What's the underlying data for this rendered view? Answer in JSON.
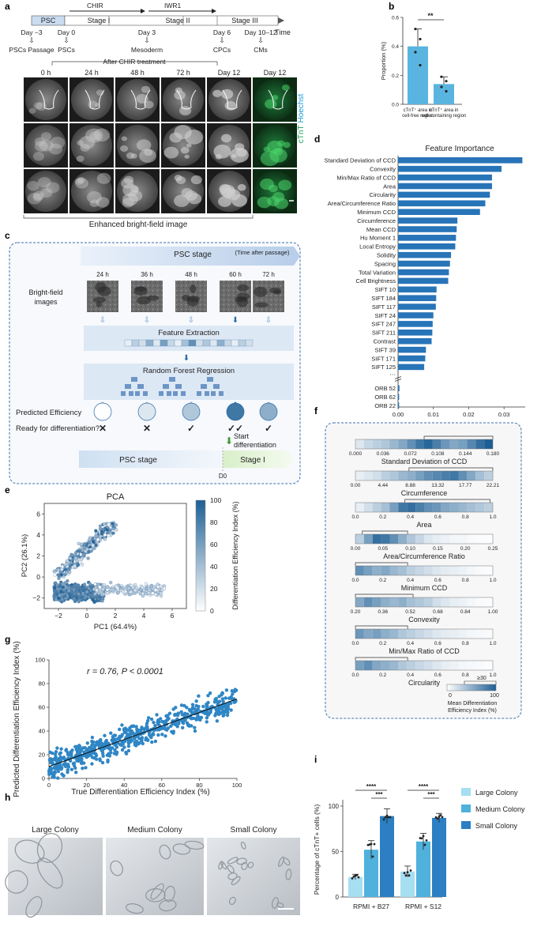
{
  "panels": {
    "a": "a",
    "b": "b",
    "c": "c",
    "d": "d",
    "e": "e",
    "f": "f",
    "g": "g",
    "h": "h",
    "i": "i"
  },
  "timeline": {
    "stages": [
      "PSC",
      "Stage I",
      "Stage II",
      "Stage III"
    ],
    "axis_label": "Time",
    "drugs": [
      "CHIR",
      "IWR1"
    ],
    "days": [
      {
        "day": "Day −3",
        "event": "PSCs Passage"
      },
      {
        "day": "Day 0",
        "event": "PSCs"
      },
      {
        "day": "Day 3",
        "event": "Mesoderm"
      },
      {
        "day": "Day 6",
        "event": "CPCs"
      },
      {
        "day": "Day 10–12",
        "event": "CMs"
      }
    ]
  },
  "images": {
    "after_chir": "After CHIR treatment",
    "time_labels": [
      "0 h",
      "24 h",
      "48 h",
      "72 h",
      "Day 12",
      "Day 12"
    ],
    "stain_ctnt": "cTnT",
    "stain_hoechst": "Hoechst",
    "bottom_label": "Enhanced bright-field image"
  },
  "bar_b": {
    "ylabel": "Proportion (%)",
    "significance": "**",
    "yticks": [
      "0.0",
      "0.2",
      "0.4",
      "0.6"
    ],
    "cat1": {
      "line1": "cTnT⁺ area in",
      "line2": "cell-free region"
    },
    "cat2": {
      "line1": "cTnT⁺ area in",
      "line2": "cell-containing region"
    }
  },
  "workflow": {
    "psc_stage_header": "PSC stage",
    "time_after": "(Time after passage)",
    "times": [
      "24 h",
      "36 h",
      "48 h",
      "60 h",
      "72 h"
    ],
    "bf_label_1": "Bright-field",
    "bf_label_2": "images",
    "feature_extraction": "Feature Extraction",
    "rf": "Random Forest Regression",
    "predicted": "Predicted Efficiency",
    "ready": "Ready for differentiation?",
    "marks": [
      "✕",
      "✕",
      "✓",
      "✓✓",
      "✓"
    ],
    "start_1": "Start",
    "start_2": "differentiation",
    "psc_stage": "PSC stage",
    "stage1": "Stage I",
    "d0": "D0"
  },
  "pca": {
    "title": "PCA",
    "xlabel": "PC1 (64.4%)",
    "ylabel": "PC2 (26.1%)",
    "xticks": [
      "−2",
      "0",
      "2",
      "4",
      "6"
    ],
    "yticks": [
      "−2",
      "0",
      "2",
      "4",
      "6"
    ],
    "cbar_label": "Differentiation Efficiency Index (%)",
    "cbar_ticks": [
      "100",
      "80",
      "60",
      "40",
      "20",
      "0"
    ]
  },
  "scatter_g": {
    "annotation": "r = 0.76, P < 0.0001",
    "xlabel": "True Differentiation Efficiency Index (%)",
    "ylabel": "Predicted Differentiation Efficiency Index (%)",
    "xticks": [
      "0",
      "20",
      "40",
      "60",
      "80",
      "100"
    ],
    "yticks": [
      "0",
      "20",
      "40",
      "60",
      "80",
      "100"
    ]
  },
  "colony_h": {
    "labels": [
      "Large Colony",
      "Medium Colony",
      "Small Colony"
    ]
  },
  "panel_f": {
    "rows": [
      {
        "name": "Standard Deviation of CCD",
        "ticks": [
          "0.000",
          "0.036",
          "0.072",
          "0.108",
          "0.144",
          "0.180"
        ]
      },
      {
        "name": "Circumference",
        "ticks": [
          "0.00",
          "4.44",
          "8.88",
          "13.32",
          "17.77",
          "22.21"
        ]
      },
      {
        "name": "Area",
        "ticks": [
          "0.0",
          "0.2",
          "0.4",
          "0.6",
          "0.8",
          "1.0"
        ]
      },
      {
        "name": "Area/Circumference Ratio",
        "ticks": [
          "0.00",
          "0.05",
          "0.10",
          "0.15",
          "0.20",
          "0.25"
        ]
      },
      {
        "name": "Minimum CCD",
        "ticks": [
          "0.0",
          "0.2",
          "0.4",
          "0.6",
          "0.8",
          "1.0"
        ]
      },
      {
        "name": "Convexity",
        "ticks": [
          "0.20",
          "0.36",
          "0.52",
          "0.68",
          "0.84",
          "1.00"
        ]
      },
      {
        "name": "Min/Max Ratio of CCD",
        "ticks": [
          "0.0",
          "0.2",
          "0.4",
          "0.6",
          "0.8",
          "1.0"
        ]
      },
      {
        "name": "Circularity",
        "ticks": [
          "0.0",
          "0.2",
          "0.4",
          "0.6",
          "0.8",
          "1.0"
        ]
      }
    ],
    "legend_max": "≥30",
    "legend_ticks": [
      "0",
      "100"
    ],
    "legend_title_1": "Mean Differentiation",
    "legend_title_2": "Efficiency Index (%)"
  },
  "chart_data": [
    {
      "id": "b",
      "type": "bar",
      "title": "",
      "categories": [
        "cTnT+ area in cell-free region",
        "cTnT+ area in cell-containing region"
      ],
      "values": [
        0.4,
        0.14
      ],
      "errors": [
        0.12,
        0.05
      ],
      "points": [
        [
          0.52,
          0.45,
          0.36,
          0.27
        ],
        [
          0.19,
          0.16,
          0.12,
          0.09
        ]
      ],
      "ylabel": "Proportion (%)",
      "ylim": [
        0,
        0.6
      ]
    },
    {
      "id": "d",
      "type": "bar",
      "orientation": "horizontal",
      "title": "Feature Importance",
      "categories": [
        "Standard Deviation of CCD",
        "Convexity",
        "Min/Max Ratio of CCD",
        "Area",
        "Circularity",
        "Area/Circumference Ratio",
        "Minimum CCD",
        "Circumference",
        "Mean CCD",
        "Hu Moment 1",
        "Local Entropy",
        "Solidity",
        "Spacing",
        "Total Variation",
        "Cell Brightness",
        "SIFT 10",
        "SIFT 184",
        "SIFT 117",
        "SIFT 24",
        "SIFT 247",
        "SIFT 211",
        "Contrast",
        "SIFT 39",
        "SIFT 171",
        "SIFT 125",
        "ORB 52",
        "ORB 62",
        "ORB 22"
      ],
      "values": [
        0.0352,
        0.0293,
        0.0266,
        0.0266,
        0.026,
        0.0247,
        0.0232,
        0.0168,
        0.0166,
        0.0164,
        0.0162,
        0.015,
        0.0147,
        0.0144,
        0.0142,
        0.0109,
        0.0108,
        0.0107,
        0.01,
        0.0098,
        0.0097,
        0.0095,
        0.0079,
        0.0077,
        0.0074,
        0.0004,
        0.0003,
        0.0003
      ],
      "xticks": [
        "0.00",
        "0.01",
        "0.02",
        "0.03"
      ],
      "xlim": [
        0,
        0.036
      ],
      "ellipsis": "···"
    },
    {
      "id": "e",
      "type": "scatter",
      "title": "PCA",
      "xlabel": "PC1 (64.4%)",
      "ylabel": "PC2 (26.1%)",
      "xlim": [
        -3,
        7
      ],
      "ylim": [
        -3,
        7
      ],
      "colorbar": [
        0,
        100
      ]
    },
    {
      "id": "g",
      "type": "scatter",
      "title": "",
      "xlabel": "True Differentiation Efficiency Index (%)",
      "ylabel": "Predicted Differentiation Efficiency Index (%)",
      "xlim": [
        0,
        100
      ],
      "ylim": [
        0,
        100
      ],
      "fit": {
        "x": [
          0,
          100
        ],
        "y": [
          10,
          67
        ]
      },
      "r": 0.76
    },
    {
      "id": "i",
      "type": "bar",
      "title": "",
      "categories": [
        "RPMI + B27",
        "RPMI + S12"
      ],
      "series": [
        {
          "name": "Large Colony",
          "values": [
            22,
            28
          ],
          "errors": [
            3,
            6
          ],
          "color": "#a6def2"
        },
        {
          "name": "Medium Colony",
          "values": [
            52,
            61
          ],
          "errors": [
            10,
            9
          ],
          "color": "#4fb1dc"
        },
        {
          "name": "Small Colony",
          "values": [
            89,
            87
          ],
          "errors": [
            8,
            5
          ],
          "color": "#2b7fc2"
        }
      ],
      "significance": [
        "****",
        "***",
        "****",
        "***"
      ],
      "ylabel": "Percentage of cTnT+ cells (%)",
      "yticks": [
        "0",
        "50",
        "100"
      ],
      "ylim": [
        0,
        100
      ]
    }
  ]
}
